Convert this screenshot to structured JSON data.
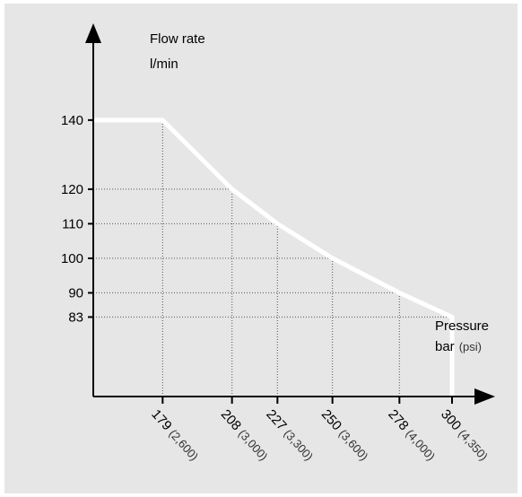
{
  "colors": {
    "background": "#e6e6e6",
    "curve": "#ffffff",
    "axis": "#000000",
    "grid": "#555555",
    "text": "#000000"
  },
  "chart_data": {
    "type": "line",
    "title": "",
    "ylabel": [
      "Flow rate",
      "l/min"
    ],
    "xlabel": {
      "line1": "Pressure",
      "unit": "bar",
      "secondary_unit": "(psi)"
    },
    "xlim": [
      150,
      318
    ],
    "ylim": [
      60,
      168
    ],
    "y_ticks": [
      83,
      90,
      100,
      110,
      120,
      140
    ],
    "x_ticks": [
      {
        "value": 179,
        "label": "179",
        "psi": "(2,600)"
      },
      {
        "value": 208,
        "label": "208",
        "psi": "(3,000)"
      },
      {
        "value": 227,
        "label": "227",
        "psi": "(3,300)"
      },
      {
        "value": 250,
        "label": "250",
        "psi": "(3,600)"
      },
      {
        "value": 278,
        "label": "278",
        "psi": "(4,000)"
      },
      {
        "value": 300,
        "label": "300",
        "psi": "(4,350)"
      }
    ],
    "series": [
      {
        "points": [
          [
            150,
            140
          ],
          [
            179,
            140
          ],
          [
            208,
            120
          ],
          [
            227,
            110
          ],
          [
            250,
            100
          ],
          [
            278,
            90
          ],
          [
            300,
            83
          ],
          [
            300,
            60
          ]
        ]
      }
    ],
    "grid": "dotted guide lines to each tick",
    "legend": "none"
  }
}
